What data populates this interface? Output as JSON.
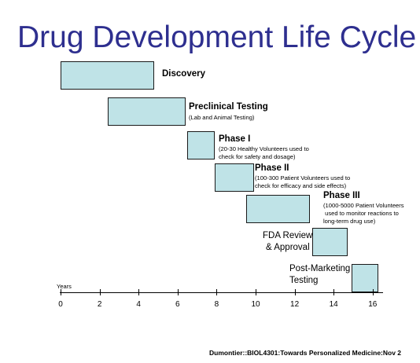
{
  "title": "Drug Development Life Cycle",
  "stages": [
    {
      "name": "Discovery",
      "start": 0,
      "end": 4.8
    },
    {
      "name": "Preclinical Testing",
      "detail": "(Lab and Animal Testing)",
      "start": 2.4,
      "end": 6.4
    },
    {
      "name": "Phase I",
      "detail_lines": [
        "(20-30 Healthy Volunteers used to",
        "check for safety and dosage)"
      ],
      "start": 6.5,
      "end": 7.9
    },
    {
      "name": "Phase II",
      "detail_lines": [
        "(100-300 Patient Volunteers used to",
        "check for efficacy and side effects)"
      ],
      "start": 7.9,
      "end": 9.9
    },
    {
      "name": "Phase III",
      "detail_lines": [
        "(1000-5000 Patient Volunteers",
        " used to monitor reactions to",
        "long-term drug use)"
      ],
      "start": 9.5,
      "end": 12.8
    },
    {
      "name_lines": [
        "FDA Review",
        "& Approval"
      ],
      "start": 12.9,
      "end": 14.7
    },
    {
      "name_lines": [
        "Post-Marketing",
        "Testing"
      ],
      "start": 14.9,
      "end": 16.3
    }
  ],
  "axis": {
    "label": "Years",
    "ticks": [
      "0",
      "2",
      "4",
      "6",
      "8",
      "10",
      "12",
      "14",
      "16"
    ]
  },
  "footer": "Dumontier::BIOL4301:Towards Personalized Medicine:Nov 2"
}
